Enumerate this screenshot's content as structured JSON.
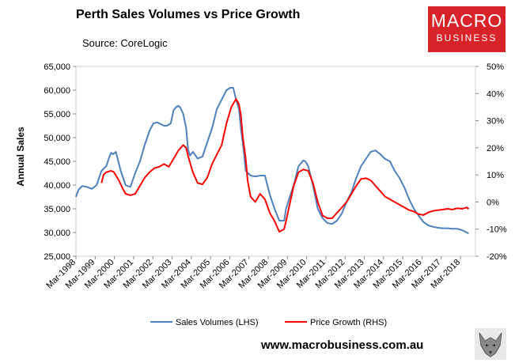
{
  "header": {
    "title": "Perth Sales Volumes vs Price Growth",
    "source": "Source: CoreLogic"
  },
  "logo": {
    "line1": "MACRO",
    "line2": "BUSINESS"
  },
  "footer": {
    "website": "www.macrobusiness.com.au"
  },
  "colors": {
    "sales": "#4f81bd",
    "price": "#ff0000",
    "brand": "#d8232a"
  },
  "chart_data": {
    "type": "line",
    "title": "Perth Sales Volumes vs Price Growth",
    "ylabel": "Annual Sales",
    "ylim_left": [
      25000,
      65000
    ],
    "ylim_right": [
      -20,
      50
    ],
    "left_ticks": [
      "25,000",
      "30,000",
      "35,000",
      "40,000",
      "45,000",
      "50,000",
      "55,000",
      "60,000",
      "65,000"
    ],
    "right_ticks": [
      "-20%",
      "-10%",
      "0%",
      "10%",
      "20%",
      "30%",
      "40%",
      "50%"
    ],
    "x_range": [
      1998.17,
      2018.95
    ],
    "categories": [
      "Mar-1998",
      "Mar-1999",
      "Mar-2000",
      "Mar-2001",
      "Mar-2002",
      "Mar-2003",
      "Mar-2004",
      "Mar-2005",
      "Mar-2006",
      "Mar-2007",
      "Mar-2008",
      "Mar-2009",
      "Mar-2010",
      "Mar-2011",
      "Mar-2012",
      "Mar-2013",
      "Mar-2014",
      "Mar-2015",
      "Mar-2016",
      "Mar-2017",
      "Mar-2018"
    ],
    "legend": [
      "Sales Volumes (LHS)",
      "Price Growth (RHS)"
    ],
    "series": [
      {
        "name": "Sales Volumes (LHS)",
        "axis": "left",
        "x": [
          1998.17,
          1998.3,
          1998.5,
          1998.75,
          1999.0,
          1999.25,
          1999.5,
          1999.75,
          1999.9,
          2000.0,
          2000.1,
          2000.25,
          2000.5,
          2000.75,
          2001.0,
          2001.25,
          2001.5,
          2001.75,
          2002.0,
          2002.2,
          2002.4,
          2002.6,
          2002.75,
          2002.9,
          2003.1,
          2003.25,
          2003.4,
          2003.5,
          2003.6,
          2003.75,
          2003.9,
          2004.0,
          2004.1,
          2004.25,
          2004.5,
          2004.75,
          2005.0,
          2005.25,
          2005.5,
          2005.75,
          2006.0,
          2006.2,
          2006.35,
          2006.5,
          2006.65,
          2006.75,
          2006.9,
          2007.0,
          2007.25,
          2007.5,
          2007.75,
          2008.0,
          2008.25,
          2008.5,
          2008.75,
          2009.0,
          2009.1,
          2009.25,
          2009.5,
          2009.75,
          2010.0,
          2010.1,
          2010.25,
          2010.5,
          2010.75,
          2011.0,
          2011.25,
          2011.5,
          2011.75,
          2012.0,
          2012.25,
          2012.5,
          2012.75,
          2013.0,
          2013.25,
          2013.5,
          2013.75,
          2014.0,
          2014.25,
          2014.5,
          2014.75,
          2015.0,
          2015.25,
          2015.5,
          2015.75,
          2016.0,
          2016.25,
          2016.5,
          2016.75,
          2017.0,
          2017.25,
          2017.5,
          2017.75,
          2018.0,
          2018.25,
          2018.5,
          2018.6
        ],
        "values": [
          37500,
          39000,
          39800,
          39600,
          39200,
          40000,
          43000,
          44000,
          45800,
          46800,
          46500,
          47000,
          43000,
          40000,
          39600,
          42500,
          45000,
          48500,
          51500,
          53000,
          53200,
          52800,
          52500,
          52500,
          53000,
          55800,
          56500,
          56700,
          56300,
          55000,
          52000,
          47500,
          46200,
          47000,
          45600,
          46000,
          49000,
          52000,
          56000,
          58000,
          60000,
          60500,
          60500,
          58000,
          56000,
          52000,
          47000,
          43000,
          42000,
          41800,
          42000,
          42000,
          38000,
          35000,
          32500,
          32500,
          35000,
          37000,
          40000,
          44000,
          45200,
          45000,
          44000,
          40000,
          35000,
          33000,
          32000,
          31800,
          32500,
          34000,
          36500,
          38500,
          41500,
          44000,
          45500,
          47000,
          47300,
          46500,
          45500,
          45000,
          43000,
          41500,
          39500,
          37000,
          35000,
          33500,
          32200,
          31500,
          31200,
          31000,
          30900,
          30900,
          30800,
          30800,
          30500,
          30000,
          29800
        ]
      },
      {
        "name": "Price Growth (RHS)",
        "axis": "right",
        "x": [
          1999.5,
          1999.6,
          1999.75,
          2000.0,
          2000.15,
          2000.4,
          2000.6,
          2000.75,
          2001.0,
          2001.25,
          2001.5,
          2001.75,
          2002.0,
          2002.25,
          2002.5,
          2002.75,
          2003.0,
          2003.25,
          2003.5,
          2003.75,
          2003.9,
          2004.0,
          2004.25,
          2004.5,
          2004.75,
          2005.0,
          2005.25,
          2005.5,
          2005.75,
          2006.0,
          2006.25,
          2006.5,
          2006.65,
          2006.75,
          2006.85,
          2007.0,
          2007.1,
          2007.25,
          2007.5,
          2007.75,
          2008.0,
          2008.25,
          2008.5,
          2008.75,
          2009.0,
          2009.1,
          2009.25,
          2009.5,
          2009.75,
          2010.0,
          2010.25,
          2010.5,
          2010.75,
          2011.0,
          2011.25,
          2011.5,
          2011.75,
          2012.0,
          2012.25,
          2012.5,
          2012.75,
          2013.0,
          2013.25,
          2013.5,
          2013.75,
          2014.0,
          2014.25,
          2014.5,
          2014.75,
          2015.0,
          2015.25,
          2015.5,
          2015.75,
          2016.0,
          2016.25,
          2016.5,
          2016.75,
          2017.0,
          2017.25,
          2017.5,
          2017.75,
          2018.0,
          2018.25,
          2018.5,
          2018.6
        ],
        "values": [
          7,
          10,
          11,
          11.5,
          11,
          8,
          5,
          3,
          2.5,
          3,
          6,
          9,
          11,
          12.5,
          13,
          14,
          13,
          16,
          19,
          21,
          20,
          17,
          11,
          7,
          6.5,
          9,
          14,
          17.5,
          21,
          29,
          35,
          38,
          36,
          32,
          24,
          16,
          8,
          2,
          0,
          3,
          1,
          -4,
          -7,
          -11,
          -10,
          -7,
          -2,
          6,
          11,
          12,
          11.5,
          7,
          0,
          -5,
          -6,
          -6,
          -4,
          -2,
          0,
          3,
          6,
          8.5,
          8.8,
          8,
          6,
          4,
          2,
          1,
          0,
          -1,
          -2,
          -3,
          -3.5,
          -4.5,
          -4.8,
          -3.8,
          -3.3,
          -3,
          -2.8,
          -2.5,
          -2.8,
          -2.3,
          -2.5,
          -2.0,
          -2.6
        ]
      }
    ]
  }
}
